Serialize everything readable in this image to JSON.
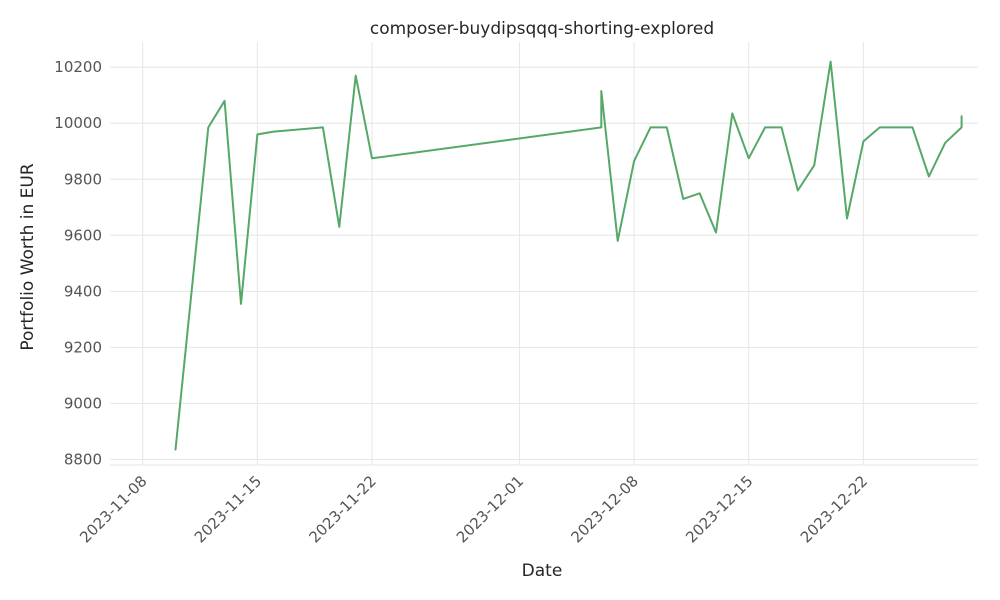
{
  "chart_data": {
    "type": "line",
    "title": "composer-buydipsqqq-shorting-explored",
    "xlabel": "Date",
    "ylabel": "Portfolio Worth in EUR",
    "xlim": [
      "2023-11-06",
      "2023-12-29"
    ],
    "ylim": [
      8780,
      10290
    ],
    "grid": true,
    "line_color": "#55a868",
    "x_ticks": [
      "2023-11-08",
      "2023-11-15",
      "2023-11-22",
      "2023-12-01",
      "2023-12-08",
      "2023-12-15",
      "2023-12-22"
    ],
    "y_ticks": [
      8800,
      9000,
      9200,
      9400,
      9600,
      9800,
      10000,
      10200
    ],
    "series": [
      {
        "x": [
          "2023-11-10",
          "2023-11-12",
          "2023-11-13",
          "2023-11-14",
          "2023-11-15",
          "2023-11-16",
          "2023-11-19",
          "2023-11-20",
          "2023-11-21",
          "2023-11-22",
          "2023-12-06",
          "2023-12-06",
          "2023-12-07",
          "2023-12-08",
          "2023-12-09",
          "2023-12-10",
          "2023-12-11",
          "2023-12-12",
          "2023-12-13",
          "2023-12-14",
          "2023-12-15",
          "2023-12-16",
          "2023-12-17",
          "2023-12-18",
          "2023-12-19",
          "2023-12-20",
          "2023-12-21",
          "2023-12-22",
          "2023-12-23",
          "2023-12-24",
          "2023-12-25",
          "2023-12-26",
          "2023-12-27",
          "2023-12-28",
          "2023-12-28"
        ],
        "values": [
          8835,
          9985,
          10080,
          9355,
          9960,
          9970,
          9985,
          9630,
          10170,
          9875,
          9985,
          10115,
          9580,
          9865,
          9985,
          9985,
          9730,
          9750,
          9610,
          10035,
          9875,
          9985,
          9985,
          9760,
          9850,
          10220,
          9660,
          9935,
          9985,
          9985,
          9985,
          9810,
          9930,
          9985,
          10025
        ]
      }
    ]
  }
}
